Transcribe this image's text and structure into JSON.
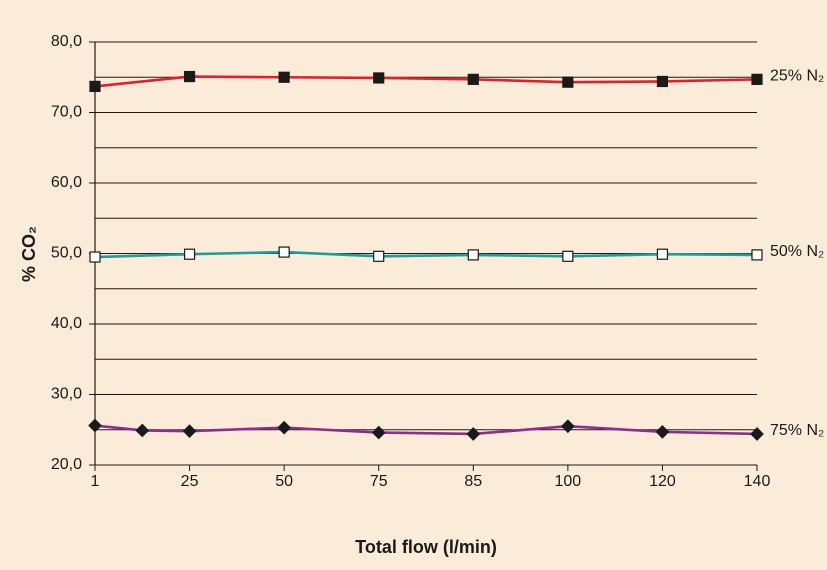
{
  "chart_data": {
    "type": "line",
    "x_label": "Total flow (l/min)",
    "y_label": "% CO₂",
    "xlim": [
      0,
      7
    ],
    "xticks": [
      {
        "value": 0,
        "label": "1"
      },
      {
        "value": 1,
        "label": "25"
      },
      {
        "value": 2,
        "label": "50"
      },
      {
        "value": 3,
        "label": "75"
      },
      {
        "value": 4,
        "label": "85"
      },
      {
        "value": 5,
        "label": "100"
      },
      {
        "value": 6,
        "label": "120"
      },
      {
        "value": 7,
        "label": "140"
      }
    ],
    "ylim": [
      20,
      80
    ],
    "yticks": [
      {
        "value": 20,
        "label": "20,0"
      },
      {
        "value": 30,
        "label": "30,0"
      },
      {
        "value": 40,
        "label": "40,0"
      },
      {
        "value": 50,
        "label": "50,0"
      },
      {
        "value": 60,
        "label": "60,0"
      },
      {
        "value": 70,
        "label": "70,0"
      },
      {
        "value": 80,
        "label": "80,0"
      }
    ],
    "minor_grid": [
      25,
      35,
      45,
      55,
      65,
      75
    ],
    "grid": true,
    "background": "#faecd8",
    "series": [
      {
        "name": "25% N₂",
        "color": "#e3202a",
        "marker": "square",
        "marker_fill": "#1a1a1a",
        "x": [
          0,
          1,
          2,
          3,
          4,
          5,
          6,
          7
        ],
        "values": [
          73.7,
          75.1,
          75.0,
          74.9,
          74.7,
          74.3,
          74.4,
          74.7
        ]
      },
      {
        "name": "50% N₂",
        "color": "#1e9e9a",
        "marker": "square",
        "marker_fill": "#ffffff",
        "x": [
          0,
          1,
          2,
          3,
          4,
          5,
          6,
          7
        ],
        "values": [
          49.5,
          49.9,
          50.2,
          49.6,
          49.8,
          49.6,
          49.9,
          49.8
        ]
      },
      {
        "name": "75% N₂",
        "color": "#8e2d8e",
        "marker": "diamond",
        "marker_fill": "#1a1a1a",
        "x": [
          0,
          0.5,
          1,
          2,
          3,
          4,
          5,
          6,
          7
        ],
        "values": [
          25.6,
          24.9,
          24.8,
          25.3,
          24.6,
          24.4,
          25.5,
          24.7,
          24.4
        ]
      }
    ]
  }
}
